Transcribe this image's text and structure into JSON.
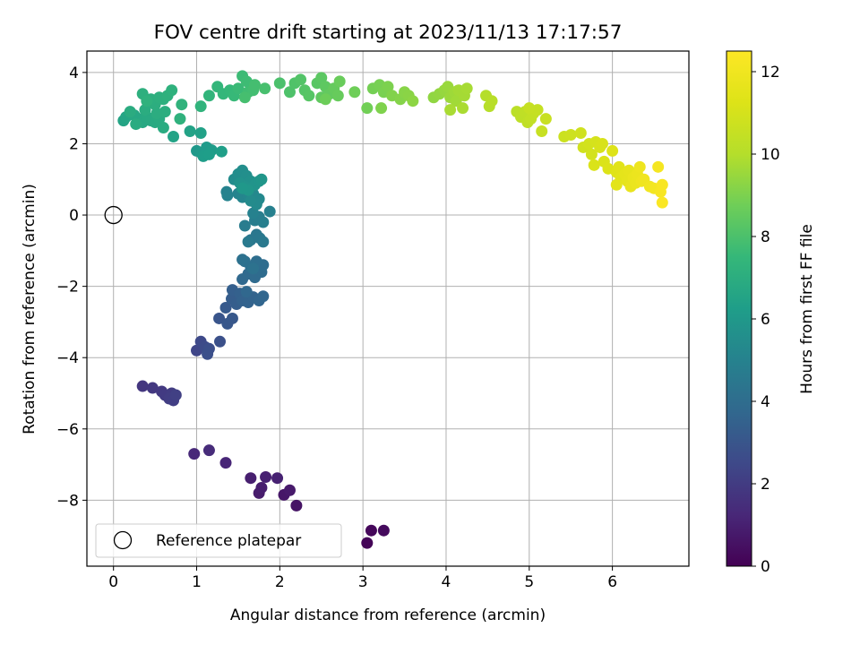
{
  "chart_data": {
    "type": "scatter",
    "title": "FOV centre drift starting at 2023/11/13 17:17:57",
    "xlabel": "Angular distance from reference (arcmin)",
    "ylabel": "Rotation from reference (arcmin)",
    "xlim": [
      -0.32,
      6.92
    ],
    "ylim": [
      -9.85,
      4.6
    ],
    "xticks": [
      0,
      1,
      2,
      3,
      4,
      5,
      6
    ],
    "yticks": [
      -8,
      -6,
      -4,
      -2,
      0,
      2,
      4
    ],
    "grid": true,
    "legend": {
      "position": "lower-left",
      "entries": [
        {
          "label": "Reference platepar",
          "marker": "open-circle"
        }
      ]
    },
    "reference_point": {
      "x": 0,
      "y": 0
    },
    "colorbar": {
      "label": "Hours from first FF file",
      "colormap": "viridis",
      "range": [
        0,
        12.5
      ],
      "ticks": [
        0,
        2,
        4,
        6,
        8,
        10,
        12
      ]
    },
    "points": [
      {
        "x": 3.05,
        "y": -9.2,
        "t": 0.1
      },
      {
        "x": 3.1,
        "y": -8.85,
        "t": 0.2
      },
      {
        "x": 3.25,
        "y": -8.85,
        "t": 0.3
      },
      {
        "x": 2.2,
        "y": -8.15,
        "t": 0.6
      },
      {
        "x": 2.05,
        "y": -7.85,
        "t": 0.7
      },
      {
        "x": 2.12,
        "y": -7.72,
        "t": 0.8
      },
      {
        "x": 1.75,
        "y": -7.8,
        "t": 0.85
      },
      {
        "x": 1.78,
        "y": -7.65,
        "t": 0.9
      },
      {
        "x": 1.65,
        "y": -7.38,
        "t": 0.95
      },
      {
        "x": 1.83,
        "y": -7.35,
        "t": 1.0
      },
      {
        "x": 1.97,
        "y": -7.38,
        "t": 1.05
      },
      {
        "x": 1.35,
        "y": -6.95,
        "t": 1.2
      },
      {
        "x": 0.97,
        "y": -6.7,
        "t": 1.3
      },
      {
        "x": 1.15,
        "y": -6.6,
        "t": 1.4
      },
      {
        "x": 0.35,
        "y": -4.8,
        "t": 1.8
      },
      {
        "x": 0.47,
        "y": -4.85,
        "t": 1.85
      },
      {
        "x": 0.58,
        "y": -4.95,
        "t": 1.9
      },
      {
        "x": 0.62,
        "y": -5.05,
        "t": 1.95
      },
      {
        "x": 0.7,
        "y": -5.0,
        "t": 2.0
      },
      {
        "x": 0.67,
        "y": -5.15,
        "t": 2.05
      },
      {
        "x": 0.72,
        "y": -5.2,
        "t": 2.1
      },
      {
        "x": 0.75,
        "y": -5.05,
        "t": 2.15
      },
      {
        "x": 1.0,
        "y": -3.8,
        "t": 2.4
      },
      {
        "x": 1.05,
        "y": -3.55,
        "t": 2.5
      },
      {
        "x": 1.1,
        "y": -3.7,
        "t": 2.6
      },
      {
        "x": 1.15,
        "y": -3.75,
        "t": 2.7
      },
      {
        "x": 1.13,
        "y": -3.9,
        "t": 2.75
      },
      {
        "x": 1.28,
        "y": -3.55,
        "t": 2.8
      },
      {
        "x": 1.27,
        "y": -2.9,
        "t": 3.0
      },
      {
        "x": 1.37,
        "y": -3.05,
        "t": 3.05
      },
      {
        "x": 1.43,
        "y": -2.9,
        "t": 3.1
      },
      {
        "x": 1.35,
        "y": -2.6,
        "t": 3.2
      },
      {
        "x": 1.42,
        "y": -2.35,
        "t": 3.3
      },
      {
        "x": 1.48,
        "y": -2.5,
        "t": 3.35
      },
      {
        "x": 1.43,
        "y": -2.1,
        "t": 3.4
      },
      {
        "x": 1.52,
        "y": -2.2,
        "t": 3.45
      },
      {
        "x": 1.55,
        "y": -2.4,
        "t": 3.5
      },
      {
        "x": 1.62,
        "y": -2.45,
        "t": 3.55
      },
      {
        "x": 1.68,
        "y": -2.3,
        "t": 3.6
      },
      {
        "x": 1.75,
        "y": -2.4,
        "t": 3.65
      },
      {
        "x": 1.8,
        "y": -2.28,
        "t": 3.7
      },
      {
        "x": 1.6,
        "y": -2.15,
        "t": 3.75
      },
      {
        "x": 1.55,
        "y": -1.8,
        "t": 3.8
      },
      {
        "x": 1.62,
        "y": -1.65,
        "t": 3.85
      },
      {
        "x": 1.7,
        "y": -1.75,
        "t": 3.9
      },
      {
        "x": 1.78,
        "y": -1.6,
        "t": 3.95
      },
      {
        "x": 1.8,
        "y": -1.4,
        "t": 4.0
      },
      {
        "x": 1.72,
        "y": -1.3,
        "t": 4.05
      },
      {
        "x": 1.65,
        "y": -1.45,
        "t": 4.1
      },
      {
        "x": 1.58,
        "y": -1.3,
        "t": 4.15
      },
      {
        "x": 1.55,
        "y": -1.25,
        "t": 4.2
      },
      {
        "x": 1.68,
        "y": -1.5,
        "t": 4.25
      },
      {
        "x": 1.65,
        "y": -0.7,
        "t": 4.4
      },
      {
        "x": 1.72,
        "y": -0.55,
        "t": 4.45
      },
      {
        "x": 1.76,
        "y": -0.65,
        "t": 4.5
      },
      {
        "x": 1.8,
        "y": -0.75,
        "t": 4.55
      },
      {
        "x": 1.62,
        "y": -0.75,
        "t": 4.6
      },
      {
        "x": 1.58,
        "y": -0.3,
        "t": 4.7
      },
      {
        "x": 1.7,
        "y": -0.15,
        "t": 4.75
      },
      {
        "x": 1.75,
        "y": -0.05,
        "t": 4.8
      },
      {
        "x": 1.8,
        "y": -0.2,
        "t": 4.85
      },
      {
        "x": 1.88,
        "y": 0.1,
        "t": 4.9
      },
      {
        "x": 1.68,
        "y": 0.05,
        "t": 4.95
      },
      {
        "x": 1.36,
        "y": 0.65,
        "t": 5.0
      },
      {
        "x": 1.37,
        "y": 0.55,
        "t": 5.05
      },
      {
        "x": 1.5,
        "y": 0.6,
        "t": 5.1
      },
      {
        "x": 1.55,
        "y": 0.5,
        "t": 5.15
      },
      {
        "x": 1.62,
        "y": 0.55,
        "t": 5.2
      },
      {
        "x": 1.68,
        "y": 0.6,
        "t": 5.25
      },
      {
        "x": 1.75,
        "y": 0.45,
        "t": 5.3
      },
      {
        "x": 1.72,
        "y": 0.3,
        "t": 5.35
      },
      {
        "x": 1.65,
        "y": 0.4,
        "t": 5.4
      },
      {
        "x": 1.45,
        "y": 1.0,
        "t": 5.45
      },
      {
        "x": 1.5,
        "y": 1.15,
        "t": 5.5
      },
      {
        "x": 1.55,
        "y": 1.25,
        "t": 5.55
      },
      {
        "x": 1.6,
        "y": 1.1,
        "t": 5.6
      },
      {
        "x": 1.65,
        "y": 0.95,
        "t": 5.65
      },
      {
        "x": 1.52,
        "y": 0.9,
        "t": 5.7
      },
      {
        "x": 1.58,
        "y": 0.8,
        "t": 5.75
      },
      {
        "x": 1.7,
        "y": 0.85,
        "t": 5.8
      },
      {
        "x": 1.75,
        "y": 0.95,
        "t": 5.85
      },
      {
        "x": 1.78,
        "y": 1.0,
        "t": 5.9
      },
      {
        "x": 1.62,
        "y": 0.7,
        "t": 5.95
      },
      {
        "x": 1.55,
        "y": 0.75,
        "t": 6.0
      },
      {
        "x": 1.0,
        "y": 1.8,
        "t": 6.0
      },
      {
        "x": 1.05,
        "y": 1.75,
        "t": 6.05
      },
      {
        "x": 1.12,
        "y": 1.9,
        "t": 6.1
      },
      {
        "x": 1.18,
        "y": 1.82,
        "t": 6.15
      },
      {
        "x": 1.08,
        "y": 1.65,
        "t": 6.2
      },
      {
        "x": 1.15,
        "y": 1.7,
        "t": 6.25
      },
      {
        "x": 1.3,
        "y": 1.78,
        "t": 6.3
      },
      {
        "x": 1.05,
        "y": 2.3,
        "t": 6.4
      },
      {
        "x": 0.92,
        "y": 2.35,
        "t": 6.45
      },
      {
        "x": 0.72,
        "y": 2.2,
        "t": 6.5
      },
      {
        "x": 0.12,
        "y": 2.65,
        "t": 6.55
      },
      {
        "x": 0.15,
        "y": 2.75,
        "t": 6.6
      },
      {
        "x": 0.2,
        "y": 2.85,
        "t": 6.65
      },
      {
        "x": 0.25,
        "y": 2.8,
        "t": 6.7
      },
      {
        "x": 0.3,
        "y": 2.7,
        "t": 6.72
      },
      {
        "x": 0.35,
        "y": 2.6,
        "t": 6.75
      },
      {
        "x": 0.4,
        "y": 2.75,
        "t": 6.78
      },
      {
        "x": 0.45,
        "y": 2.65,
        "t": 6.8
      },
      {
        "x": 0.5,
        "y": 2.6,
        "t": 6.82
      },
      {
        "x": 0.55,
        "y": 2.7,
        "t": 6.85
      },
      {
        "x": 0.6,
        "y": 2.45,
        "t": 6.88
      },
      {
        "x": 0.27,
        "y": 2.55,
        "t": 6.9
      },
      {
        "x": 0.2,
        "y": 2.9,
        "t": 6.92
      },
      {
        "x": 0.38,
        "y": 2.95,
        "t": 6.95
      },
      {
        "x": 0.52,
        "y": 2.85,
        "t": 6.97
      },
      {
        "x": 0.62,
        "y": 2.9,
        "t": 7.0
      },
      {
        "x": 0.5,
        "y": 3.1,
        "t": 7.02
      },
      {
        "x": 0.45,
        "y": 3.25,
        "t": 7.05
      },
      {
        "x": 0.35,
        "y": 3.4,
        "t": 7.08
      },
      {
        "x": 0.55,
        "y": 3.3,
        "t": 7.1
      },
      {
        "x": 0.6,
        "y": 3.25,
        "t": 7.12
      },
      {
        "x": 0.65,
        "y": 3.35,
        "t": 7.15
      },
      {
        "x": 0.7,
        "y": 3.5,
        "t": 7.18
      },
      {
        "x": 0.4,
        "y": 3.2,
        "t": 7.2
      },
      {
        "x": 0.8,
        "y": 2.7,
        "t": 7.22
      },
      {
        "x": 0.82,
        "y": 3.1,
        "t": 7.25
      },
      {
        "x": 1.05,
        "y": 3.05,
        "t": 7.3
      },
      {
        "x": 1.15,
        "y": 3.35,
        "t": 7.35
      },
      {
        "x": 1.25,
        "y": 3.6,
        "t": 7.4
      },
      {
        "x": 1.32,
        "y": 3.4,
        "t": 7.45
      },
      {
        "x": 1.4,
        "y": 3.5,
        "t": 7.5
      },
      {
        "x": 1.45,
        "y": 3.35,
        "t": 7.55
      },
      {
        "x": 1.5,
        "y": 3.55,
        "t": 7.6
      },
      {
        "x": 1.55,
        "y": 3.9,
        "t": 7.65
      },
      {
        "x": 1.6,
        "y": 3.75,
        "t": 7.7
      },
      {
        "x": 1.62,
        "y": 3.45,
        "t": 7.75
      },
      {
        "x": 1.68,
        "y": 3.5,
        "t": 7.8
      },
      {
        "x": 1.7,
        "y": 3.65,
        "t": 7.85
      },
      {
        "x": 1.58,
        "y": 3.3,
        "t": 7.88
      },
      {
        "x": 1.82,
        "y": 3.55,
        "t": 7.92
      },
      {
        "x": 2.0,
        "y": 3.7,
        "t": 8.0
      },
      {
        "x": 2.12,
        "y": 3.45,
        "t": 8.05
      },
      {
        "x": 2.18,
        "y": 3.7,
        "t": 8.1
      },
      {
        "x": 2.25,
        "y": 3.8,
        "t": 8.15
      },
      {
        "x": 2.3,
        "y": 3.5,
        "t": 8.2
      },
      {
        "x": 2.35,
        "y": 3.35,
        "t": 8.25
      },
      {
        "x": 2.45,
        "y": 3.7,
        "t": 8.3
      },
      {
        "x": 2.5,
        "y": 3.85,
        "t": 8.35
      },
      {
        "x": 2.55,
        "y": 3.6,
        "t": 8.4
      },
      {
        "x": 2.5,
        "y": 3.3,
        "t": 8.45
      },
      {
        "x": 2.6,
        "y": 3.4,
        "t": 8.5
      },
      {
        "x": 2.65,
        "y": 3.55,
        "t": 8.55
      },
      {
        "x": 2.7,
        "y": 3.35,
        "t": 8.6
      },
      {
        "x": 2.72,
        "y": 3.75,
        "t": 8.65
      },
      {
        "x": 2.55,
        "y": 3.25,
        "t": 8.7
      },
      {
        "x": 2.9,
        "y": 3.45,
        "t": 8.75
      },
      {
        "x": 3.05,
        "y": 3.0,
        "t": 8.8
      },
      {
        "x": 3.12,
        "y": 3.55,
        "t": 8.85
      },
      {
        "x": 3.2,
        "y": 3.65,
        "t": 8.9
      },
      {
        "x": 3.25,
        "y": 3.45,
        "t": 8.95
      },
      {
        "x": 3.3,
        "y": 3.6,
        "t": 9.0
      },
      {
        "x": 3.22,
        "y": 3.0,
        "t": 9.05
      },
      {
        "x": 3.35,
        "y": 3.35,
        "t": 9.1
      },
      {
        "x": 3.45,
        "y": 3.25,
        "t": 9.15
      },
      {
        "x": 3.5,
        "y": 3.45,
        "t": 9.2
      },
      {
        "x": 3.55,
        "y": 3.35,
        "t": 9.25
      },
      {
        "x": 3.6,
        "y": 3.2,
        "t": 9.3
      },
      {
        "x": 3.85,
        "y": 3.3,
        "t": 9.35
      },
      {
        "x": 3.92,
        "y": 3.4,
        "t": 9.4
      },
      {
        "x": 3.98,
        "y": 3.5,
        "t": 9.45
      },
      {
        "x": 4.02,
        "y": 3.6,
        "t": 9.5
      },
      {
        "x": 4.05,
        "y": 3.3,
        "t": 9.55
      },
      {
        "x": 4.1,
        "y": 3.45,
        "t": 9.6
      },
      {
        "x": 4.12,
        "y": 3.2,
        "t": 9.65
      },
      {
        "x": 4.15,
        "y": 3.5,
        "t": 9.7
      },
      {
        "x": 4.22,
        "y": 3.35,
        "t": 9.72
      },
      {
        "x": 4.25,
        "y": 3.55,
        "t": 9.75
      },
      {
        "x": 4.05,
        "y": 2.95,
        "t": 9.78
      },
      {
        "x": 4.2,
        "y": 3.0,
        "t": 9.8
      },
      {
        "x": 4.48,
        "y": 3.35,
        "t": 10.0
      },
      {
        "x": 4.52,
        "y": 3.05,
        "t": 10.05
      },
      {
        "x": 4.55,
        "y": 3.2,
        "t": 10.1
      },
      {
        "x": 4.85,
        "y": 2.9,
        "t": 10.2
      },
      {
        "x": 4.9,
        "y": 2.75,
        "t": 10.25
      },
      {
        "x": 4.95,
        "y": 2.9,
        "t": 10.3
      },
      {
        "x": 4.98,
        "y": 2.6,
        "t": 10.35
      },
      {
        "x": 5.02,
        "y": 2.7,
        "t": 10.4
      },
      {
        "x": 5.05,
        "y": 2.85,
        "t": 10.45
      },
      {
        "x": 5.1,
        "y": 2.95,
        "t": 10.5
      },
      {
        "x": 5.0,
        "y": 3.0,
        "t": 10.52
      },
      {
        "x": 5.15,
        "y": 2.35,
        "t": 10.55
      },
      {
        "x": 5.2,
        "y": 2.7,
        "t": 10.6
      },
      {
        "x": 5.42,
        "y": 2.2,
        "t": 10.7
      },
      {
        "x": 5.5,
        "y": 2.25,
        "t": 10.75
      },
      {
        "x": 5.62,
        "y": 2.3,
        "t": 10.8
      },
      {
        "x": 5.65,
        "y": 1.9,
        "t": 10.85
      },
      {
        "x": 5.72,
        "y": 2.0,
        "t": 10.9
      },
      {
        "x": 5.75,
        "y": 1.7,
        "t": 10.95
      },
      {
        "x": 5.8,
        "y": 2.05,
        "t": 11.0
      },
      {
        "x": 5.85,
        "y": 1.9,
        "t": 11.05
      },
      {
        "x": 5.88,
        "y": 2.0,
        "t": 11.1
      },
      {
        "x": 5.78,
        "y": 1.4,
        "t": 11.15
      },
      {
        "x": 5.9,
        "y": 1.5,
        "t": 11.2
      },
      {
        "x": 5.95,
        "y": 1.3,
        "t": 11.25
      },
      {
        "x": 6.0,
        "y": 1.8,
        "t": 11.3
      },
      {
        "x": 6.05,
        "y": 1.2,
        "t": 11.35
      },
      {
        "x": 6.08,
        "y": 1.35,
        "t": 11.4
      },
      {
        "x": 6.1,
        "y": 1.05,
        "t": 11.45
      },
      {
        "x": 6.05,
        "y": 0.85,
        "t": 11.5
      },
      {
        "x": 6.15,
        "y": 1.15,
        "t": 11.55
      },
      {
        "x": 6.18,
        "y": 0.95,
        "t": 11.6
      },
      {
        "x": 6.2,
        "y": 1.25,
        "t": 11.65
      },
      {
        "x": 6.22,
        "y": 0.8,
        "t": 11.7
      },
      {
        "x": 6.25,
        "y": 1.05,
        "t": 11.75
      },
      {
        "x": 6.28,
        "y": 0.9,
        "t": 11.8
      },
      {
        "x": 6.3,
        "y": 1.15,
        "t": 11.85
      },
      {
        "x": 6.33,
        "y": 1.35,
        "t": 11.9
      },
      {
        "x": 6.35,
        "y": 0.95,
        "t": 11.95
      },
      {
        "x": 6.38,
        "y": 1.0,
        "t": 12.0
      },
      {
        "x": 6.45,
        "y": 0.8,
        "t": 12.05
      },
      {
        "x": 6.5,
        "y": 0.75,
        "t": 12.1
      },
      {
        "x": 6.55,
        "y": 1.35,
        "t": 12.2
      },
      {
        "x": 6.58,
        "y": 0.65,
        "t": 12.25
      },
      {
        "x": 6.6,
        "y": 0.85,
        "t": 12.3
      },
      {
        "x": 6.6,
        "y": 0.35,
        "t": 12.4
      }
    ]
  }
}
